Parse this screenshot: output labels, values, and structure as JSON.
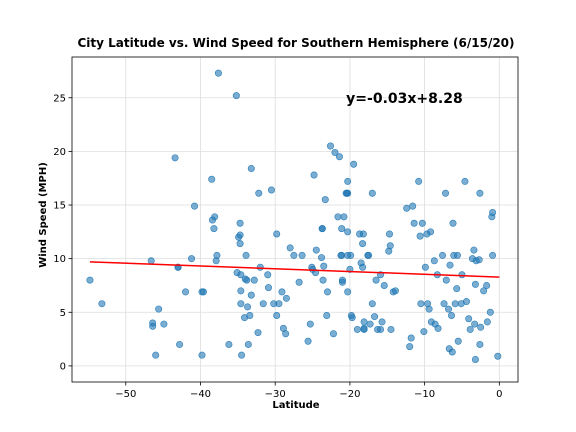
{
  "chart_data": {
    "type": "scatter",
    "title": "City Latitude vs. Wind Speed for Southern Hemisphere (6/15/20)",
    "xlabel": "Latitude",
    "ylabel": "Wind Speed (MPH)",
    "xlim": [
      -57.2,
      2.5
    ],
    "ylim": [
      -1.5,
      28.8
    ],
    "xticks": [
      -50,
      -40,
      -30,
      -20,
      -10,
      0
    ],
    "yticks": [
      0,
      5,
      10,
      15,
      20,
      25
    ],
    "grid": true,
    "point_color": "#1f77b4",
    "line_color": "#ff0000",
    "annotation": {
      "text": "y=-0.03x+8.28",
      "x": -20.5,
      "y": 25
    },
    "regression": {
      "slope": -0.026,
      "intercept": 8.28,
      "x_range": [
        -54.8,
        0.0
      ]
    },
    "points": [
      [
        -54.8,
        8.0
      ],
      [
        -53.2,
        5.8
      ],
      [
        -46.6,
        9.8
      ],
      [
        -46.4,
        4.0
      ],
      [
        -46.4,
        3.7
      ],
      [
        -46.0,
        1.0
      ],
      [
        -45.6,
        5.3
      ],
      [
        -44.9,
        3.9
      ],
      [
        -43.4,
        19.4
      ],
      [
        -43.0,
        9.2
      ],
      [
        -43.0,
        9.2
      ],
      [
        -42.8,
        2.0
      ],
      [
        -42.0,
        6.9
      ],
      [
        -41.2,
        10.0
      ],
      [
        -40.8,
        14.9
      ],
      [
        -39.8,
        6.9
      ],
      [
        -39.6,
        6.9
      ],
      [
        -39.8,
        1.0
      ],
      [
        -38.5,
        17.4
      ],
      [
        -38.4,
        13.6
      ],
      [
        -38.1,
        13.9
      ],
      [
        -38.2,
        12.8
      ],
      [
        -37.9,
        9.8
      ],
      [
        -37.8,
        10.3
      ],
      [
        -37.6,
        27.3
      ],
      [
        -36.2,
        2.0
      ],
      [
        -35.2,
        25.2
      ],
      [
        -35.1,
        8.7
      ],
      [
        -34.9,
        12.0
      ],
      [
        -34.7,
        12.2
      ],
      [
        -34.7,
        13.3
      ],
      [
        -34.7,
        11.4
      ],
      [
        -34.6,
        8.5
      ],
      [
        -34.6,
        7.0
      ],
      [
        -34.6,
        5.8
      ],
      [
        -34.5,
        1.0
      ],
      [
        -34.1,
        4.5
      ],
      [
        -34.0,
        8.1
      ],
      [
        -33.9,
        10.3
      ],
      [
        -33.8,
        8.0
      ],
      [
        -33.7,
        5.5
      ],
      [
        -33.6,
        2.0
      ],
      [
        -33.4,
        4.7
      ],
      [
        -33.2,
        18.4
      ],
      [
        -33.2,
        6.6
      ],
      [
        -32.8,
        8.0
      ],
      [
        -32.3,
        3.1
      ],
      [
        -32.2,
        16.1
      ],
      [
        -32.0,
        9.2
      ],
      [
        -31.6,
        5.8
      ],
      [
        -31.0,
        8.5
      ],
      [
        -30.9,
        7.3
      ],
      [
        -30.5,
        16.4
      ],
      [
        -30.2,
        5.8
      ],
      [
        -29.8,
        4.7
      ],
      [
        -29.8,
        12.3
      ],
      [
        -29.5,
        5.8
      ],
      [
        -29.1,
        6.9
      ],
      [
        -28.9,
        3.5
      ],
      [
        -28.6,
        3.0
      ],
      [
        -28.5,
        6.3
      ],
      [
        -28.0,
        11.0
      ],
      [
        -27.5,
        10.3
      ],
      [
        -26.8,
        7.8
      ],
      [
        -26.4,
        10.3
      ],
      [
        -25.6,
        2.3
      ],
      [
        -25.3,
        3.9
      ],
      [
        -25.1,
        9.2
      ],
      [
        -25.0,
        9.0
      ],
      [
        -24.8,
        17.8
      ],
      [
        -24.6,
        8.7
      ],
      [
        -24.5,
        10.8
      ],
      [
        -23.8,
        10.1
      ],
      [
        -23.7,
        12.8
      ],
      [
        -23.7,
        12.8
      ],
      [
        -23.6,
        8.0
      ],
      [
        -23.5,
        9.3
      ],
      [
        -23.3,
        15.5
      ],
      [
        -23.1,
        4.7
      ],
      [
        -23.0,
        6.9
      ],
      [
        -22.6,
        20.5
      ],
      [
        -22.2,
        3.0
      ],
      [
        -22.0,
        19.9
      ],
      [
        -21.6,
        13.9
      ],
      [
        -21.4,
        19.5
      ],
      [
        -21.2,
        10.3
      ],
      [
        -21.1,
        10.3
      ],
      [
        -21.1,
        12.8
      ],
      [
        -21.0,
        7.8
      ],
      [
        -21.0,
        8.0
      ],
      [
        -20.8,
        13.9
      ],
      [
        -20.5,
        16.1
      ],
      [
        -20.4,
        16.1
      ],
      [
        -20.3,
        17.2
      ],
      [
        -20.3,
        16.1
      ],
      [
        -20.3,
        10.3
      ],
      [
        -20.3,
        12.5
      ],
      [
        -20.3,
        6.9
      ],
      [
        -20.0,
        9.0
      ],
      [
        -19.9,
        10.3
      ],
      [
        -19.8,
        4.7
      ],
      [
        -19.7,
        4.5
      ],
      [
        -19.5,
        18.8
      ],
      [
        -19.0,
        3.4
      ],
      [
        -18.7,
        12.3
      ],
      [
        -18.5,
        9.6
      ],
      [
        -18.3,
        9.2
      ],
      [
        -18.3,
        11.4
      ],
      [
        -18.2,
        12.3
      ],
      [
        -18.1,
        4.1
      ],
      [
        -18.1,
        3.5
      ],
      [
        -18.1,
        3.4
      ],
      [
        -17.6,
        10.3
      ],
      [
        -17.5,
        10.3
      ],
      [
        -17.3,
        3.9
      ],
      [
        -17.0,
        16.1
      ],
      [
        -17.0,
        5.8
      ],
      [
        -16.7,
        4.6
      ],
      [
        -16.5,
        8.0
      ],
      [
        -16.3,
        3.4
      ],
      [
        -15.9,
        3.4
      ],
      [
        -15.9,
        8.5
      ],
      [
        -15.7,
        4.1
      ],
      [
        -15.4,
        7.5
      ],
      [
        -14.8,
        10.7
      ],
      [
        -14.7,
        12.3
      ],
      [
        -14.6,
        11.2
      ],
      [
        -14.5,
        3.4
      ],
      [
        -14.2,
        6.9
      ],
      [
        -13.9,
        7.0
      ],
      [
        -12.4,
        14.7
      ],
      [
        -12.0,
        1.8
      ],
      [
        -11.8,
        2.6
      ],
      [
        -11.6,
        14.9
      ],
      [
        -11.4,
        13.3
      ],
      [
        -10.8,
        17.2
      ],
      [
        -10.6,
        12.1
      ],
      [
        -10.5,
        5.8
      ],
      [
        -10.3,
        13.3
      ],
      [
        -10.1,
        3.2
      ],
      [
        -9.9,
        9.2
      ],
      [
        -9.7,
        12.3
      ],
      [
        -9.6,
        5.8
      ],
      [
        -9.4,
        5.3
      ],
      [
        -9.2,
        12.5
      ],
      [
        -9.1,
        4.1
      ],
      [
        -8.7,
        9.8
      ],
      [
        -8.6,
        3.9
      ],
      [
        -8.3,
        8.5
      ],
      [
        -8.2,
        3.5
      ],
      [
        -7.6,
        10.3
      ],
      [
        -7.4,
        5.8
      ],
      [
        -7.2,
        16.1
      ],
      [
        -7.1,
        8.0
      ],
      [
        -6.8,
        5.3
      ],
      [
        -6.7,
        1.6
      ],
      [
        -6.6,
        9.4
      ],
      [
        -6.4,
        4.7
      ],
      [
        -6.3,
        1.3
      ],
      [
        -6.2,
        13.3
      ],
      [
        -6.1,
        10.3
      ],
      [
        -5.9,
        5.8
      ],
      [
        -5.7,
        7.2
      ],
      [
        -5.6,
        10.3
      ],
      [
        -5.5,
        2.3
      ],
      [
        -5.1,
        5.8
      ],
      [
        -5.0,
        8.5
      ],
      [
        -4.6,
        17.2
      ],
      [
        -4.4,
        6.0
      ],
      [
        -4.1,
        4.4
      ],
      [
        -3.9,
        3.4
      ],
      [
        -3.6,
        10.0
      ],
      [
        -3.4,
        10.8
      ],
      [
        -3.3,
        3.9
      ],
      [
        -3.2,
        0.6
      ],
      [
        -3.2,
        7.6
      ],
      [
        -3.1,
        9.8
      ],
      [
        -2.7,
        9.9
      ],
      [
        -2.6,
        16.1
      ],
      [
        -2.6,
        2.0
      ],
      [
        -2.5,
        3.6
      ],
      [
        -2.1,
        7.0
      ],
      [
        -1.7,
        7.5
      ],
      [
        -1.6,
        4.1
      ],
      [
        -1.2,
        5.0
      ],
      [
        -1.0,
        13.9
      ],
      [
        -0.9,
        14.3
      ],
      [
        -0.9,
        10.3
      ],
      [
        -0.2,
        0.9
      ]
    ]
  }
}
